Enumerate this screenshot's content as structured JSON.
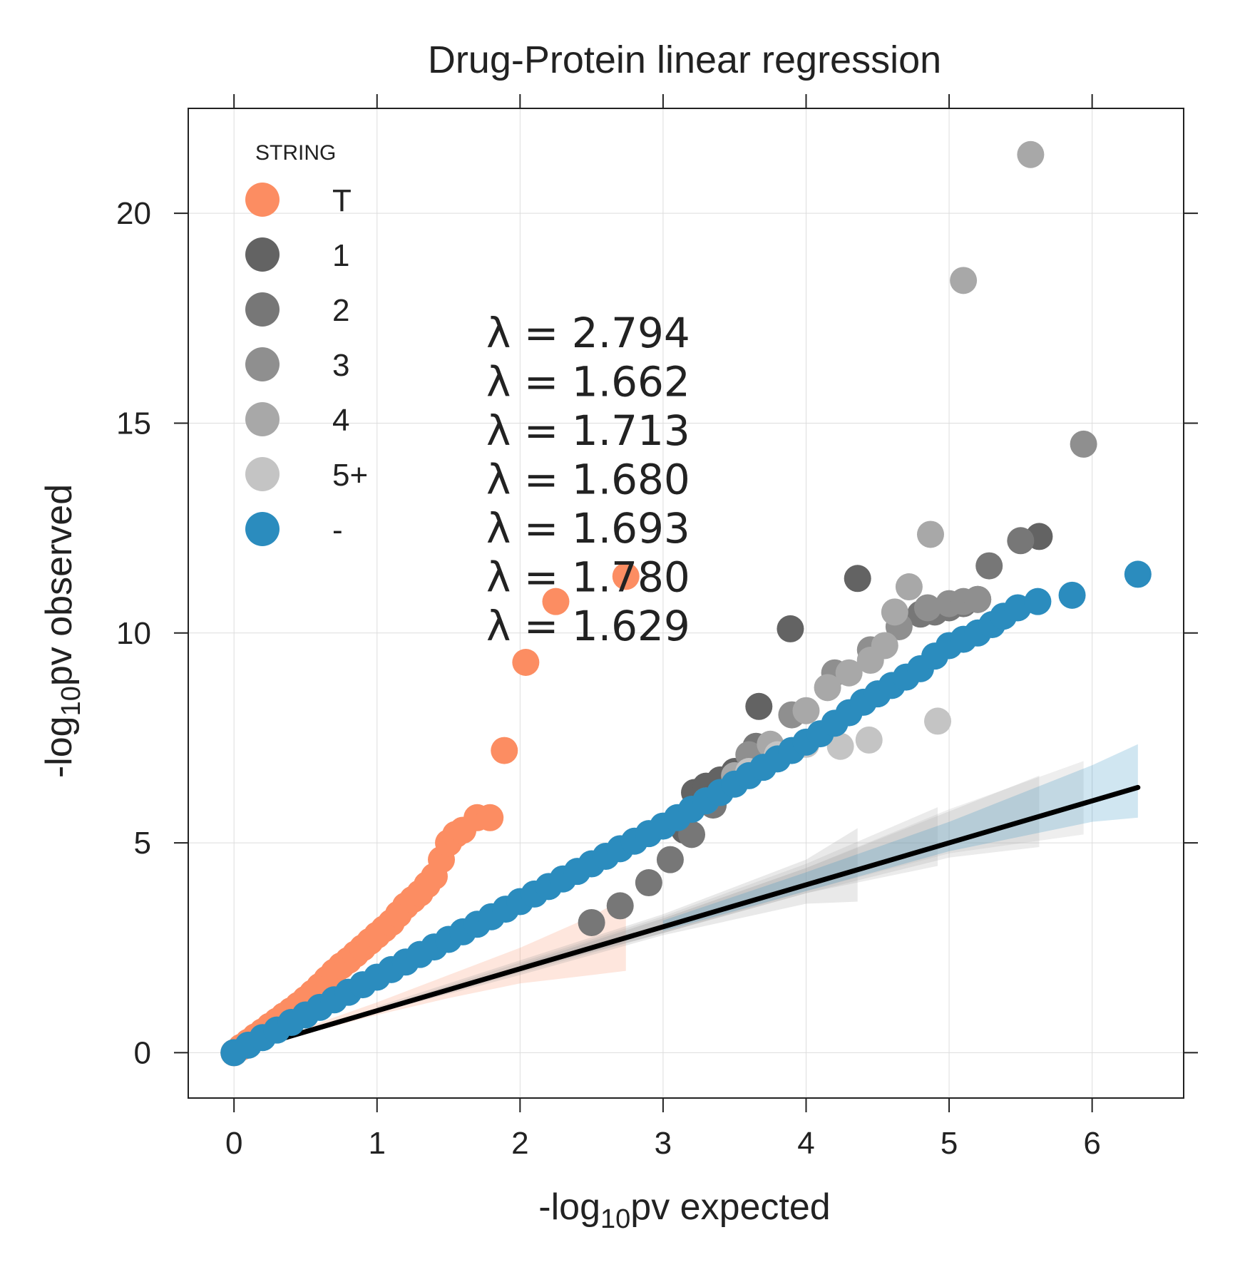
{
  "chart_data": {
    "type": "scatter",
    "title": "Drug-Protein linear regression",
    "xlabel": {
      "prefix": "-log",
      "sub": "10",
      "suffix": "pv expected"
    },
    "ylabel": {
      "prefix": "-log",
      "sub": "10",
      "suffix": "pv observed"
    },
    "xlim": [
      -0.32,
      6.64
    ],
    "ylim": [
      -1.08,
      22.5
    ],
    "xticks": [
      0,
      1,
      2,
      3,
      4,
      5,
      6
    ],
    "yticks": [
      0,
      5,
      10,
      15,
      20
    ],
    "grid": true,
    "legend": {
      "title": "STRING",
      "placement": "top-left",
      "entries": [
        {
          "label": "T",
          "color": "#fc8d62"
        },
        {
          "label": "1",
          "color": "#636363"
        },
        {
          "label": "2",
          "color": "#777777"
        },
        {
          "label": "3",
          "color": "#8f8f8f"
        },
        {
          "label": "4",
          "color": "#a8a8a8"
        },
        {
          "label": "5+",
          "color": "#c4c4c4"
        },
        {
          "label": "-",
          "color": "#2b8cbe"
        }
      ]
    },
    "annotations": [
      "λ = 2.794",
      "λ = 1.662",
      "λ = 1.713",
      "λ = 1.680",
      "λ = 1.693",
      "λ = 1.780",
      "λ = 1.629"
    ],
    "reference_line": {
      "x": [
        0,
        6.32
      ],
      "y": [
        0,
        6.32
      ],
      "color": "#000000"
    },
    "confidence_bands": [
      {
        "series": "T",
        "color": "#fc8d62",
        "x": [
          0.5,
          1.0,
          1.5,
          2.0,
          2.5,
          2.74
        ],
        "upper": [
          0.6,
          1.2,
          1.85,
          2.5,
          3.25,
          3.7
        ],
        "lower": [
          0.45,
          0.9,
          1.3,
          1.65,
          1.85,
          1.95
        ]
      },
      {
        "series": "1",
        "color": "#999999",
        "x": [
          1.0,
          2.0,
          3.0,
          4.0,
          4.36
        ],
        "upper": [
          1.1,
          2.2,
          3.3,
          4.6,
          5.35
        ],
        "lower": [
          0.95,
          1.85,
          2.8,
          3.55,
          3.6
        ]
      },
      {
        "series": "2",
        "color": "#a6a6a6",
        "x": [
          1.0,
          2.0,
          3.0,
          4.0,
          4.92
        ],
        "upper": [
          1.05,
          2.15,
          3.25,
          4.5,
          5.85
        ],
        "lower": [
          0.95,
          1.9,
          2.85,
          3.8,
          4.45
        ]
      },
      {
        "series": "3",
        "color": "#a6a6a6",
        "x": [
          2.0,
          3.0,
          4.0,
          5.0,
          5.63
        ],
        "upper": [
          2.1,
          3.2,
          4.4,
          5.75,
          6.6
        ],
        "lower": [
          1.95,
          2.85,
          3.8,
          4.65,
          4.9
        ]
      },
      {
        "series": "4",
        "color": "#b3b3b3",
        "x": [
          2.0,
          3.0,
          4.0,
          5.0,
          5.94
        ],
        "upper": [
          2.1,
          3.2,
          4.4,
          5.8,
          6.95
        ],
        "lower": [
          1.95,
          2.85,
          3.85,
          4.75,
          5.2
        ]
      },
      {
        "series": "-",
        "color": "#2b8cbe",
        "x": [
          3.0,
          4.0,
          5.0,
          6.0,
          6.32
        ],
        "upper": [
          3.15,
          4.3,
          5.5,
          6.85,
          7.35
        ],
        "lower": [
          2.9,
          3.85,
          4.8,
          5.5,
          5.6
        ]
      }
    ],
    "series": [
      {
        "name": "T",
        "color": "#fc8d62",
        "x": [
          0.0,
          0.05,
          0.1,
          0.15,
          0.2,
          0.25,
          0.3,
          0.35,
          0.4,
          0.45,
          0.5,
          0.55,
          0.6,
          0.65,
          0.7,
          0.75,
          0.8,
          0.85,
          0.9,
          0.95,
          1.0,
          1.05,
          1.1,
          1.15,
          1.2,
          1.25,
          1.3,
          1.35,
          1.4,
          1.45,
          1.5,
          1.55,
          1.6,
          1.7,
          1.79,
          1.89,
          2.04,
          2.25,
          2.74
        ],
        "y": [
          0.0,
          0.13,
          0.25,
          0.38,
          0.5,
          0.63,
          0.75,
          0.88,
          1.0,
          1.13,
          1.27,
          1.42,
          1.58,
          1.75,
          1.92,
          2.07,
          2.2,
          2.35,
          2.5,
          2.65,
          2.8,
          2.95,
          3.1,
          3.3,
          3.5,
          3.65,
          3.8,
          4.0,
          4.2,
          4.6,
          5.0,
          5.2,
          5.3,
          5.6,
          5.6,
          7.2,
          9.3,
          10.75,
          11.35
        ]
      },
      {
        "name": "1",
        "color": "#636363",
        "x": [
          3.15,
          3.22,
          3.3,
          3.4,
          3.5,
          3.67,
          3.89,
          4.36,
          5.63
        ],
        "y": [
          5.3,
          6.2,
          6.35,
          6.5,
          6.7,
          8.25,
          10.1,
          11.3,
          12.3
        ]
      },
      {
        "name": "2",
        "color": "#777777",
        "x": [
          2.5,
          2.7,
          2.9,
          3.05,
          3.2,
          3.35,
          3.5,
          3.65,
          4.8,
          4.9,
          5.0,
          5.1,
          5.2,
          5.28,
          5.5
        ],
        "y": [
          3.1,
          3.5,
          4.05,
          4.6,
          5.2,
          5.9,
          6.6,
          7.3,
          10.45,
          10.5,
          10.6,
          10.7,
          10.8,
          11.6,
          12.2
        ]
      },
      {
        "name": "3",
        "color": "#8f8f8f",
        "x": [
          3.3,
          3.6,
          3.9,
          4.2,
          4.45,
          4.65,
          4.85,
          5.0,
          5.1,
          5.2,
          5.94
        ],
        "y": [
          6.0,
          7.1,
          8.05,
          9.05,
          9.6,
          10.15,
          10.6,
          10.7,
          10.75,
          10.8,
          14.5
        ]
      },
      {
        "name": "4",
        "color": "#a8a8a8",
        "x": [
          3.5,
          3.75,
          4.0,
          4.15,
          4.3,
          4.45,
          4.55,
          4.62,
          4.72,
          4.87,
          5.1,
          5.57
        ],
        "y": [
          6.6,
          7.35,
          8.15,
          8.7,
          9.05,
          9.35,
          9.7,
          10.5,
          11.1,
          12.35,
          18.4,
          21.4
        ]
      },
      {
        "name": "5+",
        "color": "#c4c4c4",
        "x": [
          3.6,
          3.8,
          4.0,
          4.24,
          4.44,
          4.92
        ],
        "y": [
          6.7,
          7.1,
          7.35,
          7.3,
          7.45,
          7.9
        ]
      },
      {
        "name": "-",
        "color": "#2b8cbe",
        "x": [
          0.0,
          0.1,
          0.2,
          0.3,
          0.4,
          0.5,
          0.6,
          0.7,
          0.8,
          0.9,
          1.0,
          1.1,
          1.2,
          1.3,
          1.4,
          1.5,
          1.6,
          1.7,
          1.8,
          1.9,
          2.0,
          2.1,
          2.2,
          2.3,
          2.4,
          2.5,
          2.6,
          2.7,
          2.8,
          2.9,
          3.0,
          3.1,
          3.2,
          3.3,
          3.4,
          3.5,
          3.6,
          3.7,
          3.8,
          3.9,
          4.0,
          4.1,
          4.2,
          4.3,
          4.4,
          4.5,
          4.6,
          4.7,
          4.8,
          4.9,
          5.0,
          5.1,
          5.2,
          5.3,
          5.38,
          5.48,
          5.62,
          5.86,
          6.32
        ],
        "y": [
          0.0,
          0.18,
          0.36,
          0.54,
          0.72,
          0.9,
          1.08,
          1.26,
          1.44,
          1.62,
          1.8,
          1.98,
          2.16,
          2.34,
          2.52,
          2.7,
          2.88,
          3.06,
          3.24,
          3.42,
          3.6,
          3.78,
          3.96,
          4.14,
          4.32,
          4.5,
          4.68,
          4.86,
          5.04,
          5.22,
          5.4,
          5.6,
          5.8,
          6.0,
          6.2,
          6.4,
          6.6,
          6.8,
          7.0,
          7.2,
          7.4,
          7.6,
          7.85,
          8.1,
          8.35,
          8.55,
          8.75,
          8.95,
          9.15,
          9.45,
          9.7,
          9.85,
          10.0,
          10.2,
          10.4,
          10.6,
          10.75,
          10.9,
          11.4
        ]
      }
    ]
  }
}
